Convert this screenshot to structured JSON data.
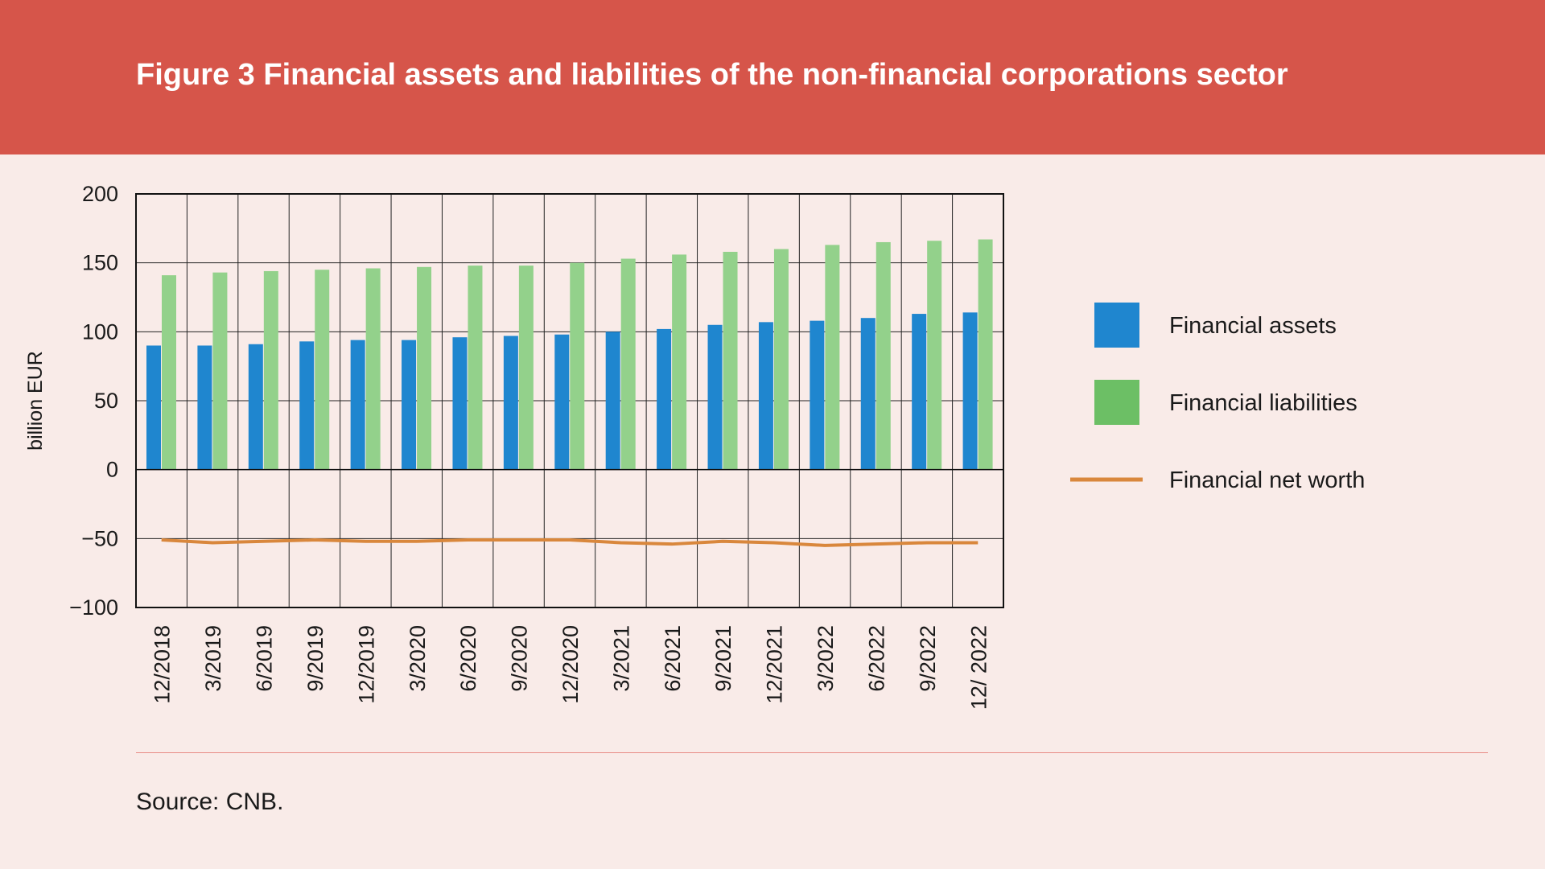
{
  "header": {
    "title": "Figure 3 Financial assets and liabilities of the non-financial corporations sector"
  },
  "footer": {
    "source": "Source: CNB."
  },
  "colors": {
    "header_bg": "#d6554a",
    "background": "#f9ebe8",
    "assets": "#1f86cf",
    "liabilities": "#93d18b",
    "liabilities_legend": "#6cbf65",
    "net_worth": "#d9873c"
  },
  "chart_data": {
    "type": "bar",
    "ylabel": "billion EUR",
    "ylim": [
      -100,
      200
    ],
    "yticks": [
      200,
      150,
      100,
      50,
      0,
      -50,
      -100
    ],
    "ytick_labels": [
      "200",
      "150",
      "100",
      "50",
      "0",
      "−50",
      "−100"
    ],
    "grid": true,
    "legend_position": "right",
    "categories": [
      "12/2018",
      "3/2019",
      "6/2019",
      "9/2019",
      "12/2019",
      "3/2020",
      "6/2020",
      "9/2020",
      "12/2020",
      "3/2021",
      "6/2021",
      "9/2021",
      "12/2021",
      "3/2022",
      "6/2022",
      "9/2022",
      "12/ 2022"
    ],
    "series": [
      {
        "name": "Financial assets",
        "type": "bar",
        "values": [
          90,
          90,
          91,
          93,
          94,
          94,
          96,
          97,
          98,
          100,
          102,
          105,
          107,
          108,
          110,
          113,
          114
        ]
      },
      {
        "name": "Financial liabilities",
        "type": "bar",
        "values": [
          141,
          143,
          144,
          145,
          146,
          147,
          148,
          148,
          150,
          153,
          156,
          158,
          160,
          163,
          165,
          166,
          167
        ]
      },
      {
        "name": "Financial net worth",
        "type": "line",
        "values": [
          -51,
          -53,
          -52,
          -51,
          -52,
          -52,
          -51,
          -51,
          -51,
          -53,
          -54,
          -52,
          -53,
          -55,
          -54,
          -53,
          -53
        ]
      }
    ]
  }
}
